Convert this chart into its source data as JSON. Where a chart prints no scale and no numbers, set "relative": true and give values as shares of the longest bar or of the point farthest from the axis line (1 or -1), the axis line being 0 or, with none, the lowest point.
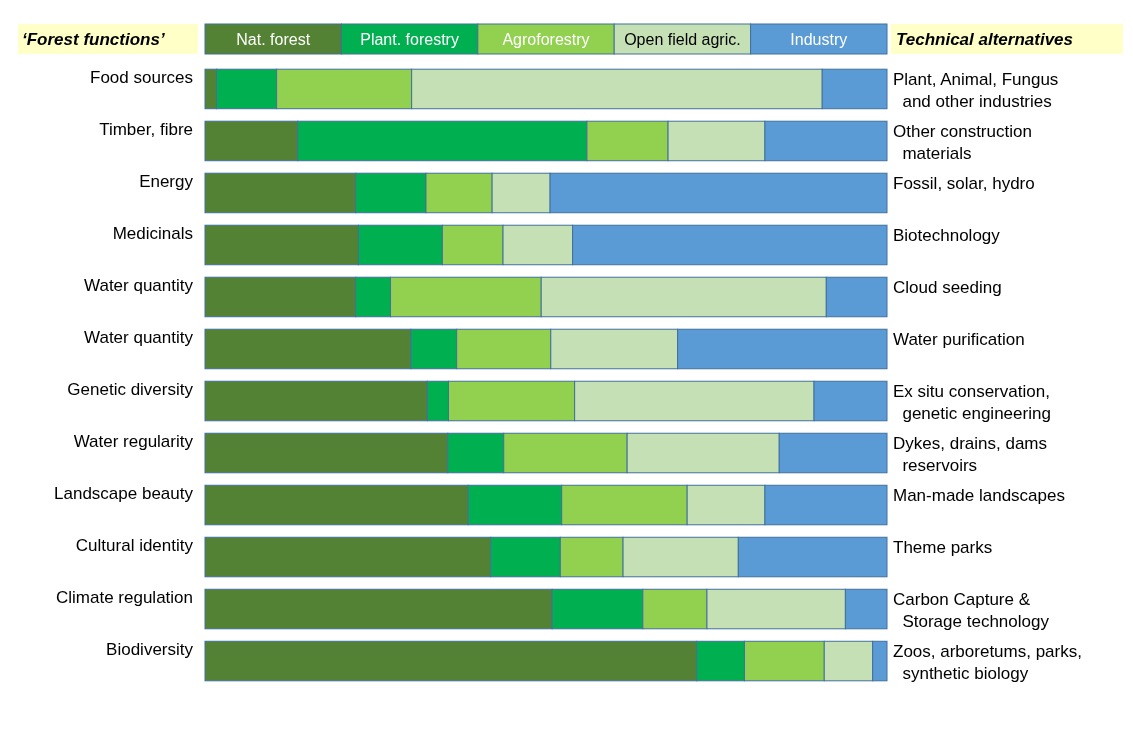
{
  "chart_data": {
    "type": "bar",
    "orientation": "horizontal",
    "stacked": true,
    "relative": true,
    "legend": "top",
    "ylabel": "‘Forest functions’",
    "y2label": "Technical alternatives",
    "categories": [
      "Food sources",
      "Timber, fibre",
      "Energy",
      "Medicinals",
      "Water quantity",
      "Water quantity",
      "Genetic diversity",
      "Water regularity",
      "Landscape beauty",
      "Cultural identity",
      "Climate regulation",
      "Biodiversity"
    ],
    "series": [
      {
        "name": "Nat. forest",
        "color": "#548235",
        "values": [
          0.017,
          0.136,
          0.221,
          0.225,
          0.221,
          0.302,
          0.326,
          0.356,
          0.386,
          0.419,
          0.509,
          0.721
        ]
      },
      {
        "name": "Plant. forestry",
        "color": "#00b050",
        "values": [
          0.088,
          0.424,
          0.103,
          0.123,
          0.051,
          0.067,
          0.031,
          0.082,
          0.137,
          0.102,
          0.133,
          0.07
        ]
      },
      {
        "name": "Agroforestry",
        "color": "#92d050",
        "values": [
          0.198,
          0.119,
          0.097,
          0.089,
          0.221,
          0.138,
          0.185,
          0.181,
          0.184,
          0.092,
          0.094,
          0.117
        ]
      },
      {
        "name": "Open field agric.",
        "color": "#c5e0b4",
        "values": [
          0.602,
          0.142,
          0.085,
          0.102,
          0.418,
          0.186,
          0.351,
          0.223,
          0.114,
          0.169,
          0.203,
          0.071
        ]
      },
      {
        "name": "Industry",
        "color": "#5b9bd5",
        "values": [
          0.095,
          0.179,
          0.494,
          0.461,
          0.089,
          0.307,
          0.107,
          0.158,
          0.179,
          0.218,
          0.061,
          0.021
        ]
      }
    ],
    "annotations": [
      "Plant, Animal, Fungus\n  and other industries",
      "Other construction\n  materials",
      "Fossil, solar, hydro",
      "Biotechnology",
      "Cloud seeding",
      "Water purification",
      "Ex situ conservation,\n  genetic engineering",
      "Dykes, drains, dams\n  reservoirs",
      "Man-made landscapes",
      "Theme parks",
      "Carbon Capture &\n  Storage technology",
      "Zoos, arboretums, parks,\n  synthetic biology"
    ]
  }
}
